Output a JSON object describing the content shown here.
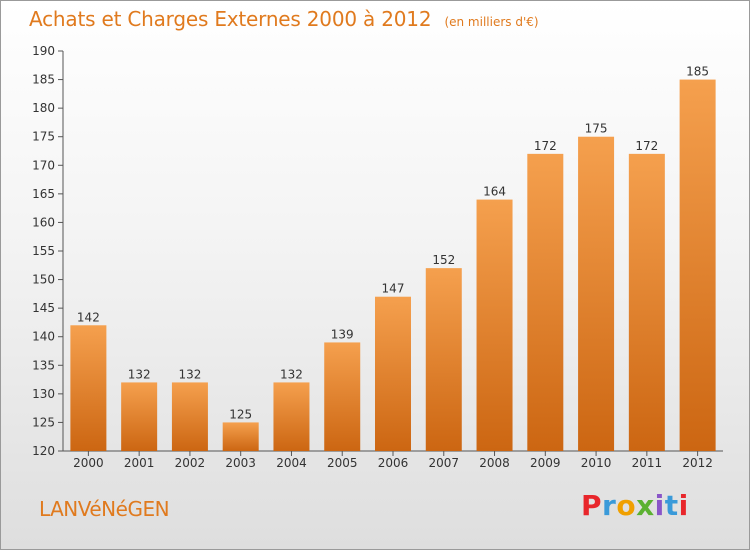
{
  "header": {
    "title": "Achats et Charges Externes 2000 à 2012",
    "subtitle": "(en milliers d'€)"
  },
  "footer": {
    "town": "LANVéNéGEN",
    "brand": "Proxiti"
  },
  "colors": {
    "bar_top": "#f5a04e",
    "bar_bottom": "#cc6612",
    "accent": "#e07a1e"
  },
  "chart_data": {
    "type": "bar",
    "categories": [
      "2000",
      "2001",
      "2002",
      "2003",
      "2004",
      "2005",
      "2006",
      "2007",
      "2008",
      "2009",
      "2010",
      "2011",
      "2012"
    ],
    "values": [
      142,
      132,
      132,
      125,
      132,
      139,
      147,
      152,
      164,
      172,
      175,
      172,
      185
    ],
    "ylim": [
      120,
      190
    ],
    "yticks": [
      120,
      125,
      130,
      135,
      140,
      145,
      150,
      155,
      160,
      165,
      170,
      175,
      180,
      185,
      190
    ],
    "grid": false,
    "legend": "none"
  }
}
